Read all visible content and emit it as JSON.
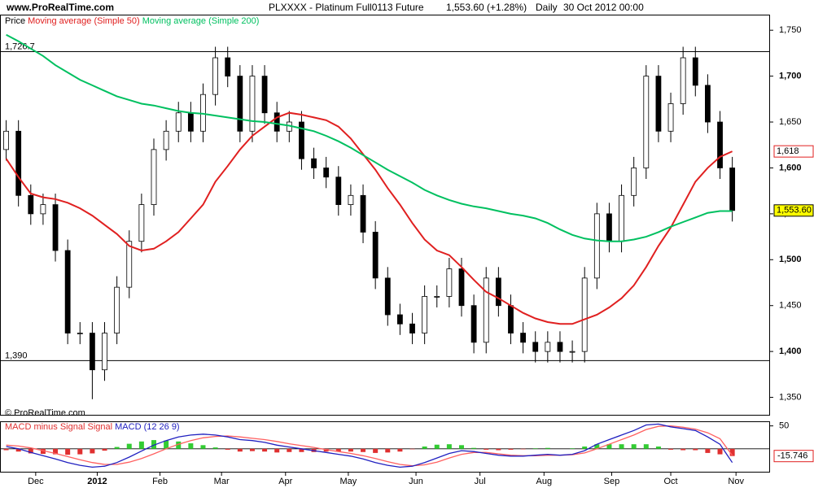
{
  "header": {
    "site": "www.ProRealTime.com",
    "title": "PLXXXX - Platinum Full0113 Future",
    "price": "1,553.60 (+1.28%)",
    "period": "Daily",
    "date": "30 Oct 2012 00:00",
    "copyright": "© ProRealTime.com"
  },
  "chart_data": [
    {
      "type": "candlestick",
      "legend_prefix": "Price",
      "categories": [
        null,
        null,
        null,
        null,
        null,
        null,
        null,
        null,
        null,
        null,
        null,
        null,
        null,
        null,
        null,
        null,
        null,
        null,
        null,
        null,
        null,
        null,
        null,
        null,
        null,
        null,
        null,
        null,
        null,
        null,
        null,
        null,
        null,
        null,
        null,
        null,
        null,
        null,
        null,
        null,
        null,
        null,
        null,
        null,
        null,
        null,
        null,
        null,
        null,
        null,
        null,
        null,
        null,
        null,
        null,
        null,
        null,
        null,
        null,
        null
      ],
      "open": [
        1620,
        1640,
        1570,
        1550,
        1560,
        1510,
        1420,
        1420,
        1380,
        1420,
        1470,
        1520,
        1560,
        1620,
        1640,
        1660,
        1640,
        1680,
        1720,
        1700,
        1640,
        1700,
        1660,
        1640,
        1650,
        1610,
        1600,
        1590,
        1560,
        1570,
        1530,
        1480,
        1440,
        1430,
        1420,
        1460,
        1460,
        1490,
        1450,
        1410,
        1480,
        1450,
        1420,
        1410,
        1400,
        1410,
        1400,
        1400,
        1480,
        1550,
        1520,
        1570,
        1600,
        1700,
        1640,
        1670,
        1720,
        1690,
        1650,
        1600
      ],
      "high": [
        1652,
        1652,
        1582,
        1572,
        1572,
        1522,
        1432,
        1432,
        1432,
        1482,
        1532,
        1572,
        1632,
        1652,
        1672,
        1672,
        1692,
        1732,
        1732,
        1712,
        1712,
        1712,
        1672,
        1662,
        1662,
        1622,
        1612,
        1602,
        1582,
        1582,
        1542,
        1492,
        1452,
        1442,
        1472,
        1472,
        1502,
        1502,
        1462,
        1492,
        1492,
        1462,
        1432,
        1422,
        1422,
        1422,
        1412,
        1492,
        1562,
        1562,
        1582,
        1612,
        1712,
        1712,
        1682,
        1732,
        1732,
        1702,
        1662,
        1612
      ],
      "low": [
        1608,
        1558,
        1538,
        1538,
        1498,
        1408,
        1408,
        1348,
        1368,
        1408,
        1458,
        1508,
        1548,
        1608,
        1628,
        1628,
        1628,
        1668,
        1688,
        1628,
        1628,
        1648,
        1628,
        1628,
        1598,
        1588,
        1578,
        1548,
        1548,
        1518,
        1468,
        1428,
        1418,
        1408,
        1408,
        1448,
        1448,
        1438,
        1398,
        1398,
        1438,
        1408,
        1398,
        1388,
        1388,
        1388,
        1388,
        1388,
        1468,
        1508,
        1508,
        1558,
        1588,
        1628,
        1628,
        1658,
        1678,
        1638,
        1588,
        1541.6
      ],
      "close": [
        1640,
        1570,
        1550,
        1560,
        1510,
        1420,
        1420,
        1380,
        1420,
        1470,
        1520,
        1560,
        1620,
        1640,
        1660,
        1640,
        1680,
        1720,
        1700,
        1640,
        1700,
        1660,
        1640,
        1650,
        1610,
        1600,
        1590,
        1560,
        1570,
        1530,
        1480,
        1440,
        1430,
        1420,
        1460,
        1460,
        1490,
        1450,
        1410,
        1480,
        1450,
        1420,
        1410,
        1400,
        1410,
        1400,
        1400,
        1480,
        1550,
        1520,
        1570,
        1600,
        1700,
        1640,
        1670,
        1720,
        1690,
        1650,
        1600,
        1553.6
      ],
      "up_color": "#ffffff",
      "down_color": "#000000",
      "series": [
        {
          "name": "Moving average (Simple 50)",
          "color": "#e02020",
          "values": [
            1610,
            1590,
            1572,
            1568,
            1566,
            1562,
            1556,
            1548,
            1538,
            1528,
            1515,
            1510,
            1512,
            1520,
            1530,
            1545,
            1560,
            1585,
            1602,
            1620,
            1635,
            1645,
            1655,
            1660,
            1658,
            1655,
            1652,
            1645,
            1632,
            1615,
            1598,
            1578,
            1560,
            1540,
            1522,
            1510,
            1505,
            1492,
            1478,
            1465,
            1458,
            1450,
            1442,
            1436,
            1432,
            1430,
            1430,
            1435,
            1440,
            1448,
            1458,
            1472,
            1492,
            1515,
            1535,
            1560,
            1585,
            1600,
            1612,
            1618
          ]
        },
        {
          "name": "Moving average (Simple 200)",
          "color": "#00c060",
          "values": [
            1745,
            1738,
            1730,
            1722,
            1712,
            1704,
            1696,
            1690,
            1684,
            1678,
            1674,
            1670,
            1668,
            1665,
            1662,
            1660,
            1659,
            1657,
            1655,
            1653,
            1651,
            1650,
            1648,
            1646,
            1643,
            1640,
            1635,
            1629,
            1622,
            1614,
            1606,
            1598,
            1591,
            1584,
            1576,
            1570,
            1565,
            1561,
            1558,
            1556,
            1553,
            1550,
            1548,
            1545,
            1540,
            1533,
            1527,
            1523,
            1521,
            1520,
            1520,
            1522,
            1525,
            1530,
            1536,
            1541,
            1546,
            1551,
            1553,
            1553
          ]
        }
      ],
      "xlim": [
        -0.5,
        62
      ],
      "xticks": [
        {
          "value": 2.4,
          "label": "Dec"
        },
        {
          "value": 7.4,
          "label": "2012"
        },
        {
          "value": 12.5,
          "label": "Feb"
        },
        {
          "value": 17.5,
          "label": "Mar"
        },
        {
          "value": 22.7,
          "label": "Apr"
        },
        {
          "value": 27.8,
          "label": "May"
        },
        {
          "value": 33.3,
          "label": "Jun"
        },
        {
          "value": 38.5,
          "label": "Jul"
        },
        {
          "value": 43.7,
          "label": "Aug"
        },
        {
          "value": 49.2,
          "label": "Sep"
        },
        {
          "value": 54.0,
          "label": "Oct"
        },
        {
          "value": 59.3,
          "label": "Nov"
        }
      ],
      "ylim": [
        1331,
        1767
      ],
      "yticks": [
        {
          "value": 1350,
          "label": "1,350"
        },
        {
          "value": 1400,
          "label": "1,400"
        },
        {
          "value": 1450,
          "label": "1,450"
        },
        {
          "value": 1500,
          "label": "1,500"
        },
        {
          "value": 1550,
          "label": "1,550"
        },
        {
          "value": 1600,
          "label": "1,600"
        },
        {
          "value": 1650,
          "label": "1,650"
        },
        {
          "value": 1700,
          "label": "1,700"
        },
        {
          "value": 1750,
          "label": "1,750"
        }
      ],
      "hlines": [
        {
          "value": 1726.7,
          "label": "1,726.7"
        },
        {
          "value": 1390,
          "label": "1,390"
        }
      ],
      "last_labels": [
        {
          "value": 1618,
          "label": "1,618",
          "color": "#e02020"
        },
        {
          "value": 1553.6,
          "label": "1,553.60",
          "color": "#ffff00"
        }
      ]
    },
    {
      "type": "macd",
      "series": [
        {
          "name": "MACD minus Signal",
          "color": "#e03030",
          "positive_color": "#33cc33",
          "values": [
            -3,
            -6,
            -10,
            -11,
            -12,
            -13,
            -12,
            -10,
            -4,
            4,
            11,
            16,
            19,
            18,
            16,
            12,
            8,
            3,
            -2,
            -6,
            -5,
            -6,
            -8,
            -7,
            -7,
            -7,
            -6,
            -6,
            -6,
            -7,
            -9,
            -8,
            -6,
            -1,
            5,
            9,
            10,
            8,
            2,
            -2,
            -3,
            -2,
            -1,
            1,
            2,
            0,
            1,
            5,
            10,
            10,
            10,
            10,
            10,
            5,
            -2,
            -3,
            -3,
            -9,
            -12,
            -15.746
          ]
        },
        {
          "name": "Signal",
          "color": "#ff6060",
          "values": [
            8,
            6,
            2,
            -4,
            -10,
            -17,
            -24,
            -30,
            -34,
            -34,
            -29,
            -21,
            -11,
            0,
            10,
            18,
            24,
            27,
            28,
            26,
            23,
            20,
            16,
            11,
            7,
            3,
            -2,
            -6,
            -10,
            -15,
            -21,
            -28,
            -34,
            -37,
            -35,
            -29,
            -20,
            -12,
            -8,
            -8,
            -11,
            -14,
            -15,
            -15,
            -14,
            -14,
            -13,
            -9,
            0,
            10,
            20,
            30,
            42,
            49,
            50,
            47,
            43,
            35,
            22,
            -14.254
          ]
        },
        {
          "name": "MACD (12 26 9)",
          "color": "#2020c0",
          "values": [
            5,
            0,
            -8,
            -15,
            -22,
            -30,
            -36,
            -40,
            -38,
            -30,
            -18,
            -5,
            8,
            18,
            26,
            30,
            32,
            30,
            26,
            20,
            18,
            14,
            8,
            4,
            0,
            -4,
            -8,
            -12,
            -16,
            -22,
            -30,
            -36,
            -40,
            -38,
            -30,
            -20,
            -10,
            -4,
            -6,
            -10,
            -14,
            -16,
            -16,
            -14,
            -12,
            -14,
            -12,
            -4,
            10,
            20,
            30,
            40,
            52,
            54,
            48,
            44,
            40,
            26,
            10,
            -30
          ]
        }
      ],
      "ylim": [
        -50,
        60
      ],
      "yticks": [
        50
      ],
      "last_label": {
        "value": -15.746,
        "label": "-15.746",
        "color": "#e02020"
      }
    }
  ]
}
